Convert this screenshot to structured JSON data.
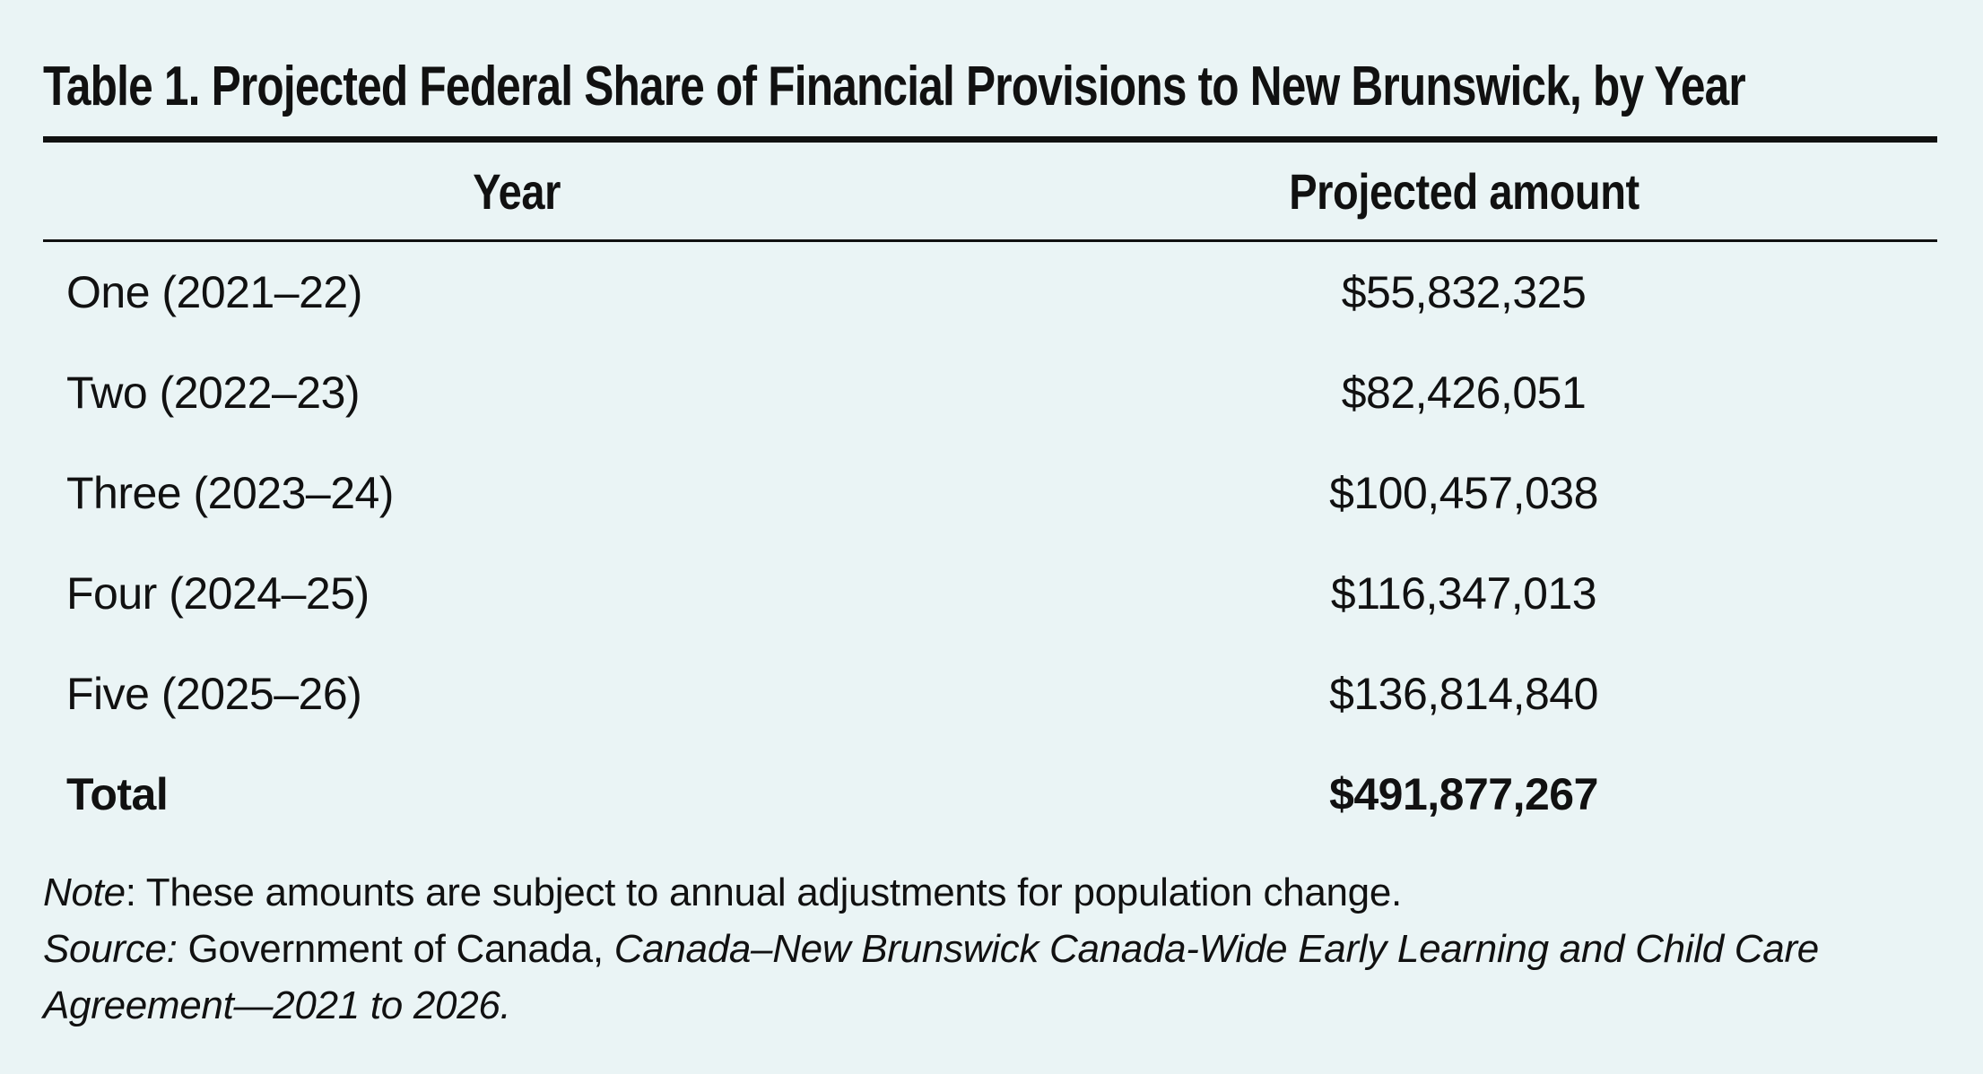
{
  "page": {
    "background_color": "#eaf4f5",
    "text_color": "#111111",
    "rule_color": "#111111"
  },
  "table": {
    "title": "Table 1. Projected Federal Share of Financial Provisions to New Brunswick, by Year",
    "columns": {
      "year": "Year",
      "amount": "Projected amount"
    },
    "rows": [
      {
        "year": "One (2021–22)",
        "amount": "$55,832,325"
      },
      {
        "year": "Two (2022–23)",
        "amount": "$82,426,051"
      },
      {
        "year": "Three (2023–24)",
        "amount": "$100,457,038"
      },
      {
        "year": "Four (2024–25)",
        "amount": "$116,347,013"
      },
      {
        "year": "Five (2025–26)",
        "amount": "$136,814,840"
      }
    ],
    "total": {
      "label": "Total",
      "amount": "$491,877,267"
    }
  },
  "notes": {
    "note_label": "Note",
    "note_text": ": These amounts are subject to annual adjustments for population change.",
    "source_label": "Source:",
    "source_plain": " Government of Canada, ",
    "source_title": "Canada–New Brunswick Canada-Wide Early Learning and Child Care Agreement—2021 to 2026."
  }
}
